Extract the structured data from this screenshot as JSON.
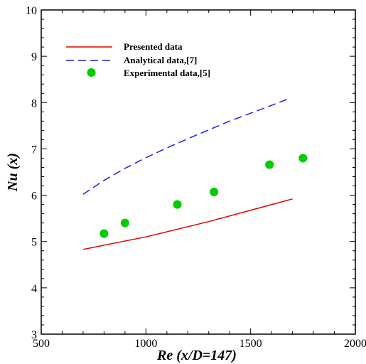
{
  "chart_data": {
    "type": "line",
    "xlabel": "Re (x/D=147)",
    "ylabel": "Nu (x)",
    "xlim": [
      500,
      2000
    ],
    "ylim": [
      3,
      10
    ],
    "xticks": [
      "500",
      "1000",
      "1500",
      "2000"
    ],
    "yticks": [
      "3",
      "4",
      "5",
      "6",
      "7",
      "8",
      "9",
      "10"
    ],
    "grid": false,
    "legend_position": "top-left",
    "series": [
      {
        "name": "Presented data",
        "style": "solid-line",
        "color": "#e00000",
        "x": [
          700,
          1000,
          1300,
          1700
        ],
        "y": [
          4.83,
          5.1,
          5.43,
          5.92
        ]
      },
      {
        "name": "Analytical data,[7]",
        "style": "dashed-line",
        "color": "#2323d8",
        "x": [
          700,
          800,
          900,
          1000,
          1100,
          1200,
          1300,
          1400,
          1500,
          1600,
          1680
        ],
        "y": [
          6.02,
          6.32,
          6.58,
          6.81,
          7.02,
          7.22,
          7.41,
          7.6,
          7.77,
          7.94,
          8.08
        ]
      },
      {
        "name": "Experimental data,[5]",
        "style": "markers",
        "color": "#00cc00",
        "x": [
          800,
          900,
          1150,
          1325,
          1590,
          1750
        ],
        "y": [
          5.17,
          5.4,
          5.8,
          6.07,
          6.66,
          6.8
        ]
      }
    ]
  }
}
